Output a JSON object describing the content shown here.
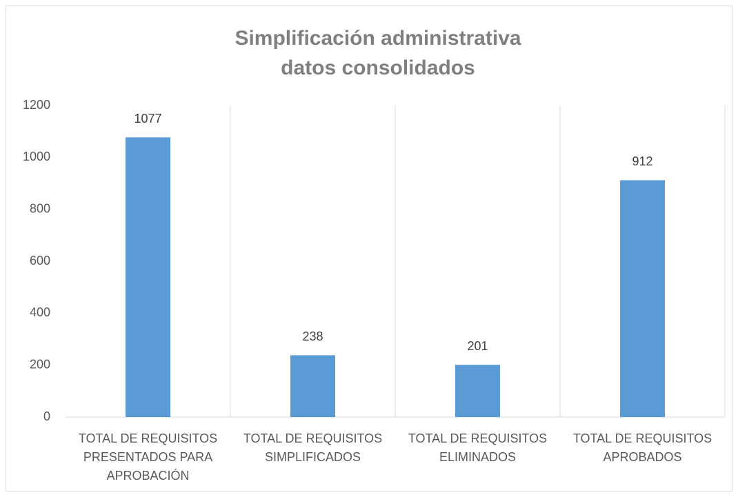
{
  "chart_data": {
    "type": "bar",
    "title_lines": [
      "Simplificación administrativa",
      "datos consolidados"
    ],
    "categories": [
      [
        "TOTAL DE REQUISITOS",
        "PRESENTADOS PARA",
        "APROBACIÓN"
      ],
      [
        "TOTAL DE REQUISITOS",
        "SIMPLIFICADOS"
      ],
      [
        "TOTAL DE REQUISITOS",
        "ELIMINADOS"
      ],
      [
        "TOTAL DE REQUISITOS",
        "APROBADOS"
      ]
    ],
    "values": [
      1077,
      238,
      201,
      912
    ],
    "color": "#5b9bd5",
    "ylim": [
      0,
      1200
    ],
    "yticks": [
      0,
      200,
      400,
      600,
      800,
      1000,
      1200
    ],
    "grid": false
  }
}
